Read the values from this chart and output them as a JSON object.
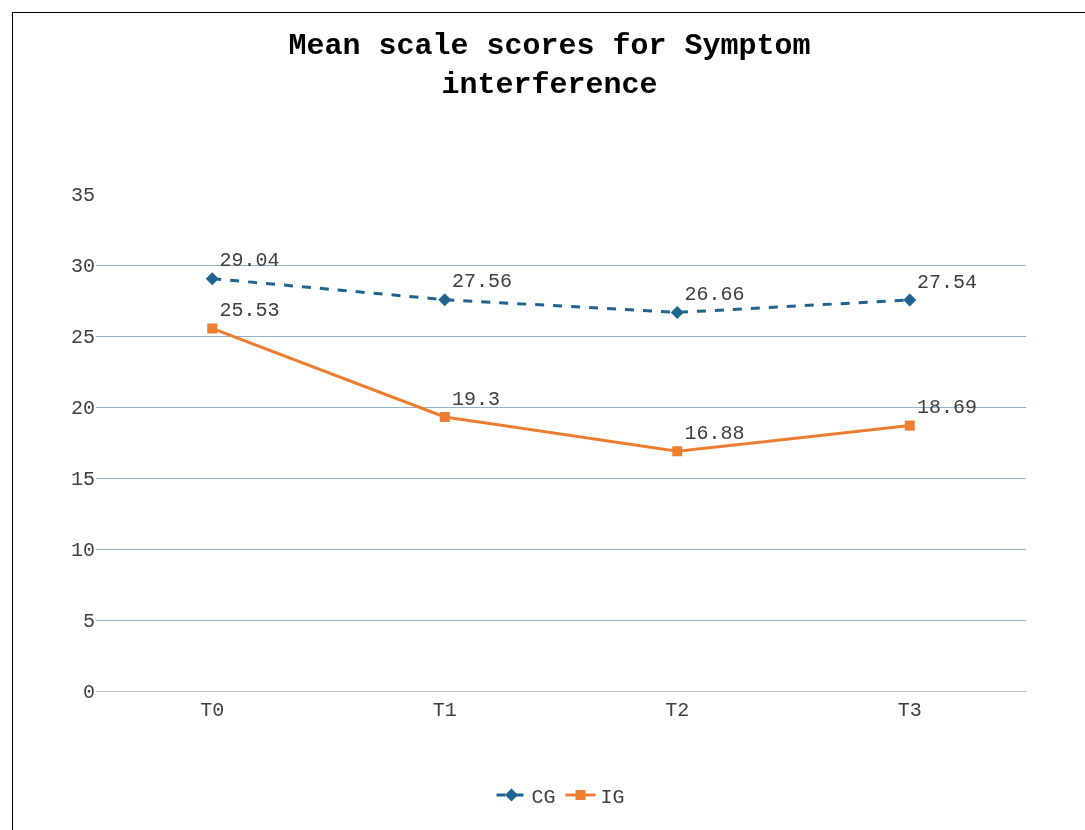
{
  "chart_data": {
    "type": "line",
    "title": "Mean scale scores for Symptom interference",
    "categories": [
      "T0",
      "T1",
      "T2",
      "T3"
    ],
    "series": [
      {
        "name": "CG",
        "color": "#1f6390",
        "values": [
          29.04,
          27.56,
          26.66,
          27.54
        ],
        "marker": "diamond",
        "line_style": "dashed"
      },
      {
        "name": "IG",
        "color": "#ed7d31",
        "values": [
          25.53,
          19.3,
          16.88,
          18.69
        ],
        "marker": "square",
        "line_style": "solid"
      }
    ],
    "ylim": [
      0,
      35
    ],
    "yticks": [
      0,
      5,
      10,
      15,
      20,
      25,
      30,
      35
    ],
    "grid": "y",
    "legend": "bottom",
    "data_labels": true
  }
}
